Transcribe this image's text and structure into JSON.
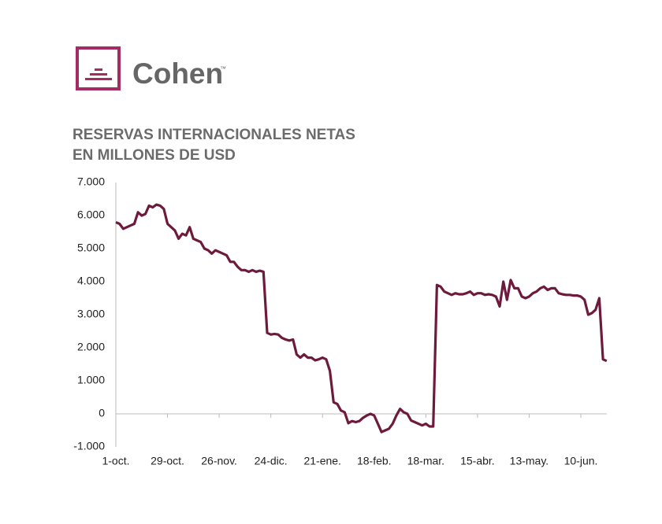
{
  "brand": {
    "name": "Cohen",
    "mark": "™"
  },
  "chart_data": {
    "type": "line",
    "title": [
      "RESERVAS INTERNACIONALES NETAS",
      "EN MILLONES DE USD"
    ],
    "categories": [
      "1-oct.",
      null,
      null,
      null,
      null,
      null,
      null,
      null,
      null,
      null,
      null,
      null,
      null,
      null,
      "29-oct.",
      null,
      null,
      null,
      null,
      null,
      null,
      null,
      null,
      null,
      null,
      null,
      null,
      null,
      "26-nov.",
      null,
      null,
      null,
      null,
      null,
      null,
      null,
      null,
      null,
      null,
      null,
      null,
      null,
      "24-dic.",
      null,
      null,
      null,
      null,
      null,
      null,
      null,
      null,
      null,
      null,
      null,
      null,
      null,
      "21-ene.",
      null,
      null,
      null,
      null,
      null,
      null,
      null,
      null,
      null,
      null,
      null,
      null,
      null,
      "18-feb.",
      null,
      null,
      null,
      null,
      null,
      null,
      null,
      null,
      null,
      null,
      null,
      null,
      null,
      "18-mar.",
      null,
      null,
      null,
      null,
      null,
      null,
      null,
      null,
      null,
      null,
      null,
      null,
      null,
      "15-abr.",
      null,
      null,
      null,
      null,
      null,
      null,
      null,
      null,
      null,
      null,
      null,
      null,
      null,
      "13-may.",
      null,
      null,
      null,
      null,
      null,
      null,
      null,
      null,
      null,
      null,
      null,
      null,
      null,
      "10-jun.",
      null,
      null,
      null,
      null,
      null,
      null,
      null
    ],
    "series": [
      {
        "name": "Reservas internacionales netas",
        "color": "#6e1a3c",
        "values": [
          5800,
          5750,
          5600,
          5650,
          5700,
          5750,
          6100,
          6000,
          6050,
          6300,
          6250,
          6330,
          6300,
          6200,
          5750,
          5650,
          5550,
          5300,
          5450,
          5400,
          5650,
          5300,
          5250,
          5200,
          5000,
          4950,
          4850,
          4950,
          4900,
          4850,
          4800,
          4600,
          4600,
          4450,
          4350,
          4350,
          4300,
          4350,
          4300,
          4330,
          4300,
          2450,
          2400,
          2420,
          2400,
          2300,
          2250,
          2220,
          2250,
          1800,
          1700,
          1800,
          1700,
          1700,
          1620,
          1650,
          1700,
          1650,
          1300,
          350,
          300,
          100,
          50,
          -280,
          -220,
          -250,
          -220,
          -120,
          -50,
          0,
          -50,
          -300,
          -550,
          -500,
          -450,
          -300,
          -50,
          150,
          50,
          0,
          -200,
          -250,
          -300,
          -350,
          -300,
          -380,
          -380,
          3900,
          3850,
          3700,
          3650,
          3600,
          3650,
          3620,
          3620,
          3650,
          3700,
          3600,
          3650,
          3650,
          3600,
          3620,
          3600,
          3550,
          3250,
          4000,
          3450,
          4050,
          3800,
          3800,
          3550,
          3500,
          3550,
          3650,
          3700,
          3800,
          3850,
          3750,
          3800,
          3800,
          3650,
          3620,
          3600,
          3600,
          3580,
          3580,
          3550,
          3450,
          3000,
          3050,
          3150,
          3500,
          1650,
          1600
        ]
      }
    ],
    "ylim": [
      -1000,
      7000
    ],
    "yticks": [
      {
        "value": -1000,
        "label": "-1.000"
      },
      0,
      {
        "value": 1000,
        "label": "1.000"
      },
      {
        "value": 2000,
        "label": "2.000"
      },
      {
        "value": 3000,
        "label": "3.000"
      },
      {
        "value": 4000,
        "label": "4.000"
      },
      {
        "value": 5000,
        "label": "5.000"
      },
      {
        "value": 6000,
        "label": "6.000"
      },
      {
        "value": 7000,
        "label": "7.000"
      }
    ],
    "grid": false
  }
}
